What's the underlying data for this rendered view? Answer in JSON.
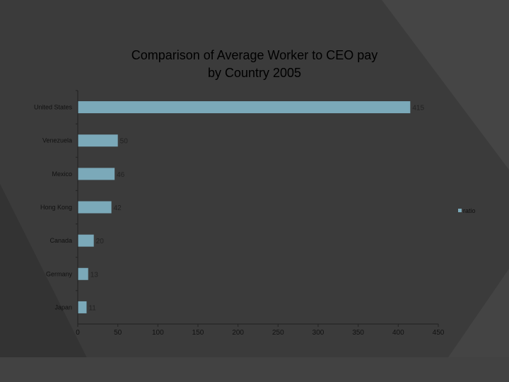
{
  "chart_data": {
    "type": "bar",
    "orientation": "horizontal",
    "title": "Comparison of Average Worker to CEO pay",
    "subtitle": "by Country  2005",
    "categories": [
      "United States",
      "Venezuela",
      "Mexico",
      "Hong Kong",
      "Canada",
      "Germany",
      "Japan"
    ],
    "series": [
      {
        "name": "ratio",
        "values": [
          415,
          50,
          46,
          42,
          20,
          13,
          11
        ],
        "color": "#7ba9b9"
      }
    ],
    "data_labels": [
      "415",
      "50",
      "46",
      "42",
      "20",
      "13",
      "11"
    ],
    "x_ticks": [
      "0",
      "50",
      "100",
      "150",
      "200",
      "250",
      "300",
      "350",
      "400",
      "450"
    ],
    "xlim": [
      0,
      450
    ],
    "grid": false,
    "legend": {
      "position": "right",
      "label": "ratio"
    }
  }
}
